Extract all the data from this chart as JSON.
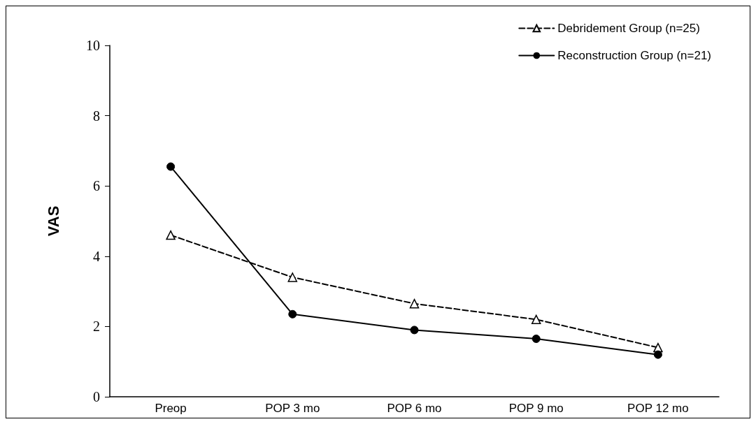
{
  "chart_data": {
    "type": "line",
    "ylabel": "VAS",
    "categories": [
      "Preop",
      "POP 3 mo",
      "POP 6 mo",
      "POP 9 mo",
      "POP 12 mo"
    ],
    "series": [
      {
        "name": "Debridement Group (n=25)",
        "color": "#000000",
        "marker": "triangle",
        "line_style": "dashed",
        "values": [
          4.6,
          3.4,
          2.65,
          2.2,
          1.4
        ]
      },
      {
        "name": "Reconstruction Group (n=21)",
        "color": "#000000",
        "marker": "circle",
        "line_style": "solid",
        "values": [
          6.55,
          2.35,
          1.9,
          1.65,
          1.2
        ]
      }
    ],
    "ylim": [
      0,
      10
    ],
    "yticks": [
      0,
      2,
      4,
      6,
      8,
      10
    ],
    "grid": false,
    "legend": "top right"
  }
}
